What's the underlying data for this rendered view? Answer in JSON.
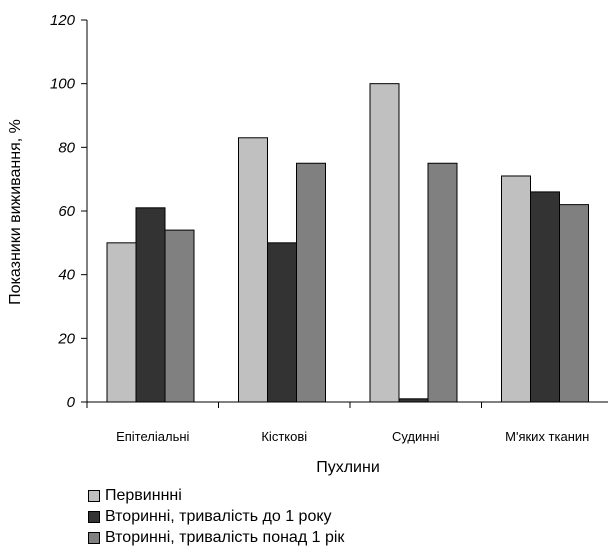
{
  "chart_data": {
    "type": "bar",
    "xlabel": "Пухлини",
    "ylabel": "Показники виживання, %",
    "ylim": [
      0,
      120
    ],
    "yticks": [
      "0",
      "20",
      "40",
      "60",
      "80",
      "100",
      "120"
    ],
    "categories": [
      "Епітеліальні",
      "Кісткові",
      "Судинні",
      "М'яких тканин"
    ],
    "series": [
      {
        "name": "Первиннні",
        "color": "#c0c0c0",
        "values": [
          50,
          83,
          100,
          71
        ]
      },
      {
        "name": "Вторинні, тривалість до 1 року",
        "color": "#333333",
        "values": [
          61,
          50,
          1,
          66
        ]
      },
      {
        "name": "Вторинні, тривалість понад 1 рік",
        "color": "#808080",
        "values": [
          54,
          75,
          75,
          62
        ]
      }
    ],
    "grid": false,
    "legend": "bottom-left"
  }
}
